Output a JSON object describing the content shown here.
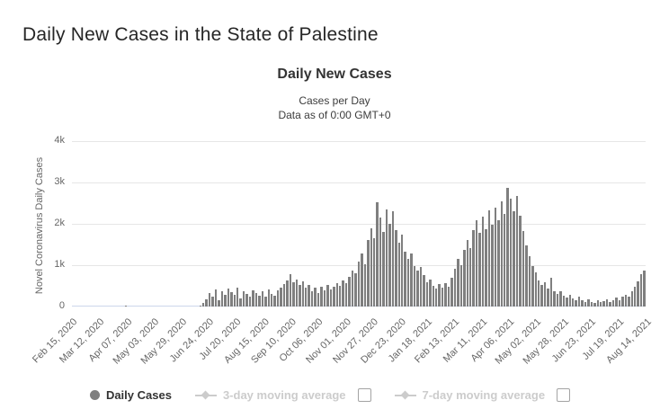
{
  "page": {
    "title": "Daily New Cases in the State of Palestine"
  },
  "chart": {
    "title": "Daily New Cases",
    "subtitle": "Cases per Day",
    "data_note": "Data as of 0:00 GMT+0",
    "y_axis_title": "Novel Coronavirus Daily Cases"
  },
  "legend": {
    "daily_cases": {
      "label": "Daily Cases",
      "color": "#7f7f7f",
      "active": true
    },
    "ma3": {
      "label": "3-day moving average",
      "checked": false,
      "active": false
    },
    "ma7": {
      "label": "7-day moving average",
      "checked": false,
      "active": false
    },
    "inactive_color": "#cccccc"
  },
  "colors": {
    "bar": "#7f7f7f",
    "grid_line": "#e6e6e6",
    "axis_line": "#ccd6eb",
    "tick_text": "#666666",
    "title_text": "#333333"
  },
  "chart_data": {
    "type": "bar",
    "title": "Daily New Cases",
    "subtitle": "Cases per Day",
    "data_note": "Data as of 0:00 GMT+0",
    "xlabel": "",
    "ylabel": "Novel Coronavirus Daily Cases",
    "ylim": [
      0,
      4000
    ],
    "ytick_values": [
      0,
      1000,
      2000,
      3000,
      4000
    ],
    "ytick_labels": [
      "0",
      "1k",
      "2k",
      "3k",
      "4k"
    ],
    "xtick_labels": [
      "Feb 15, 2020",
      "Mar 12, 2020",
      "Apr 07, 2020",
      "May 03, 2020",
      "May 29, 2020",
      "Jun 24, 2020",
      "Jul 20, 2020",
      "Aug 15, 2020",
      "Sep 10, 2020",
      "Oct 06, 2020",
      "Nov 01, 2020",
      "Nov 27, 2020",
      "Dec 23, 2020",
      "Jan 18, 2021",
      "Feb 13, 2021",
      "Mar 11, 2021",
      "Apr 06, 2021",
      "May 02, 2021",
      "May 28, 2021",
      "Jun 23, 2021",
      "Jul 19, 2021",
      "Aug 14, 2021"
    ],
    "grid": true,
    "legend_position": "bottom",
    "series": [
      {
        "name": "Daily Cases",
        "color": "#7f7f7f",
        "start_date": "Feb 15, 2020",
        "end_date": "Aug 20, 2021",
        "sample_interval_days": 3,
        "values_note": "Daily new cases estimated from bar heights at 3-day intervals; peaks ~2530 (early Dec 2020) and ~2870 (mid Apr 2021).",
        "values": [
          0,
          0,
          0,
          0,
          0,
          0,
          0,
          0,
          0,
          0,
          0,
          0,
          0,
          0,
          0,
          0,
          0,
          25,
          0,
          0,
          0,
          0,
          0,
          0,
          0,
          0,
          0,
          0,
          0,
          0,
          0,
          0,
          0,
          0,
          0,
          0,
          0,
          0,
          0,
          0,
          0,
          20,
          80,
          180,
          320,
          250,
          410,
          150,
          380,
          290,
          430,
          340,
          280,
          450,
          190,
          370,
          310,
          250,
          400,
          320,
          270,
          360,
          230,
          420,
          310,
          270,
          390,
          460,
          540,
          630,
          780,
          580,
          660,
          520,
          600,
          450,
          530,
          380,
          460,
          330,
          490,
          400,
          530,
          420,
          480,
          560,
          500,
          640,
          560,
          720,
          880,
          800,
          1080,
          1280,
          1020,
          1600,
          1900,
          1650,
          2530,
          2150,
          1800,
          2350,
          2000,
          2300,
          1850,
          1550,
          1750,
          1320,
          1150,
          1280,
          980,
          860,
          950,
          760,
          580,
          650,
          500,
          430,
          540,
          460,
          570,
          490,
          700,
          920,
          1150,
          1000,
          1380,
          1620,
          1420,
          1850,
          2080,
          1780,
          2180,
          1880,
          2320,
          1980,
          2400,
          2080,
          2550,
          2250,
          2870,
          2620,
          2300,
          2680,
          2200,
          1820,
          1480,
          1220,
          980,
          820,
          640,
          520,
          590,
          430,
          700,
          380,
          300,
          360,
          260,
          220,
          290,
          200,
          160,
          230,
          150,
          120,
          180,
          110,
          95,
          150,
          105,
          135,
          170,
          120,
          160,
          210,
          150,
          230,
          290,
          250,
          370,
          480,
          620,
          780,
          880
        ]
      }
    ],
    "inactive_series": [
      "3-day moving average",
      "7-day moving average"
    ]
  }
}
